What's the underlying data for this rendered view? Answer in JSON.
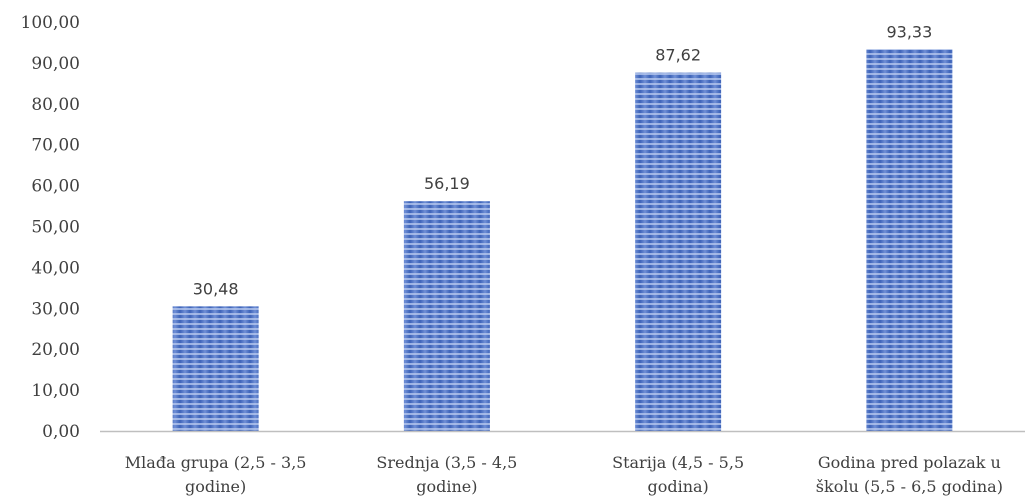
{
  "chart_data": {
    "type": "bar",
    "categories": [
      [
        "Mlađa grupa (2,5 - 3,5",
        "godine)"
      ],
      [
        "Srednja (3,5 - 4,5",
        "godine)"
      ],
      [
        "Starija (4,5 - 5,5",
        "godina)"
      ],
      [
        "Godina pred polazak u",
        "školu (5,5 - 6,5 godina)"
      ]
    ],
    "values": [
      30.48,
      56.19,
      87.62,
      93.33
    ],
    "data_labels": [
      "30,48",
      "56,19",
      "87,62",
      "93,33"
    ],
    "yticks": [
      "0,00",
      "10,00",
      "20,00",
      "30,00",
      "40,00",
      "50,00",
      "60,00",
      "70,00",
      "80,00",
      "90,00",
      "100,00"
    ],
    "ylim": [
      0,
      100
    ],
    "grid": false,
    "legend": "none",
    "bar_color": "#4a6fc4",
    "bar_stripe_color": "#a9bfe8"
  }
}
